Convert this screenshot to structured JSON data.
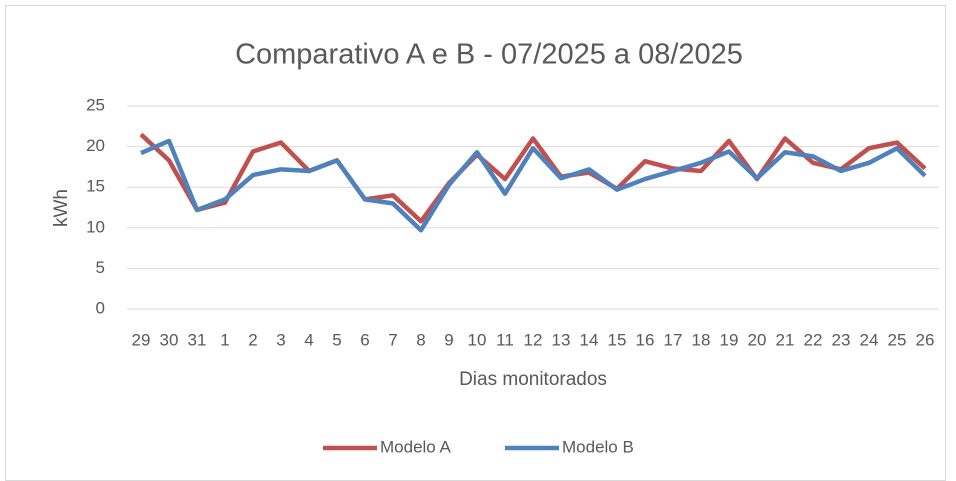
{
  "chart_data": {
    "type": "line",
    "title": "Comparativo A e B - 07/2025 a 08/2025",
    "x_label": "Dias monitorados",
    "y_label": "kWh",
    "categories": [
      "29",
      "30",
      "31",
      "1",
      "2",
      "3",
      "4",
      "5",
      "6",
      "7",
      "8",
      "9",
      "10",
      "11",
      "12",
      "13",
      "14",
      "15",
      "16",
      "17",
      "18",
      "19",
      "20",
      "21",
      "22",
      "23",
      "24",
      "25",
      "26"
    ],
    "series": [
      {
        "name": "Modelo A",
        "color": "#c0504d",
        "values": [
          21.5,
          18.3,
          12.2,
          13.1,
          19.4,
          20.5,
          17,
          18.3,
          13.5,
          14,
          10.8,
          15.5,
          19,
          16,
          21,
          16.3,
          16.8,
          14.8,
          18.2,
          17.3,
          17,
          20.7,
          16,
          21,
          18,
          17.2,
          19.8,
          20.5,
          17.3
        ]
      },
      {
        "name": "Modelo B",
        "color": "#4f81bd",
        "values": [
          19.2,
          20.7,
          12.2,
          13.5,
          16.5,
          17.2,
          17,
          18.3,
          13.5,
          13,
          9.7,
          15.3,
          19.3,
          14.2,
          19.8,
          16.1,
          17.2,
          14.7,
          16,
          17,
          18,
          19.4,
          16.1,
          19.3,
          18.8,
          17,
          18,
          19.8,
          16.4
        ]
      }
    ],
    "ylim": [
      0,
      25
    ],
    "yticks": [
      0,
      5,
      10,
      15,
      20,
      25
    ],
    "grid": true,
    "legend": "bottom"
  }
}
